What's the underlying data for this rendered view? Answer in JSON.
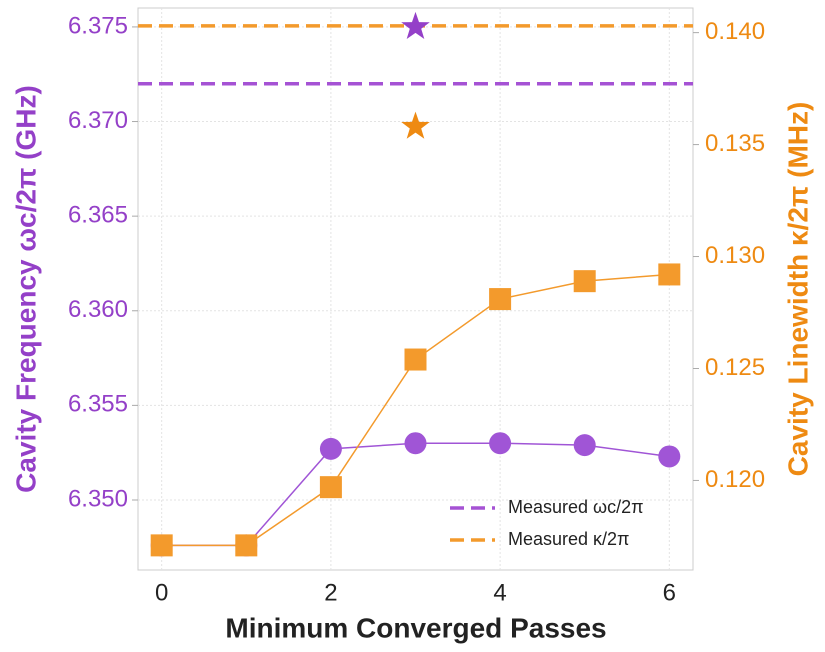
{
  "chart_data": {
    "type": "line",
    "x_label": "Minimum Converged Passes",
    "y_label": "Cavity Frequency ωc/2π (GHz)",
    "y2_label": "Cavity Linewidth κ/2π (MHz)",
    "x": [
      0,
      1,
      2,
      3,
      4,
      5,
      6
    ],
    "xlim": [
      -0.28,
      6.28
    ],
    "xticks": [
      0,
      2,
      4,
      6
    ],
    "ylim": [
      6.3463,
      6.376
    ],
    "yticks": [
      {
        "value": 6.35,
        "label": "6.350"
      },
      6.355,
      {
        "value": 6.36,
        "label": "6.360"
      },
      6.365,
      {
        "value": 6.37,
        "label": "6.370"
      },
      6.375
    ],
    "y2lim": [
      0.116,
      0.1411
    ],
    "y2ticks": [
      {
        "value": 0.12,
        "label": "0.120"
      },
      0.125,
      {
        "value": 0.13,
        "label": "0.130"
      },
      0.135,
      {
        "value": 0.14,
        "label": "0.140"
      }
    ],
    "grid": true,
    "legend": "lower right",
    "y_color": "#9440c8",
    "y2_color": "#ee8a12",
    "series": [
      {
        "color": "#a055d6",
        "marker": "circle",
        "values": [
          6.3476,
          6.3476,
          6.3527,
          6.353,
          6.353,
          6.3529,
          6.3523
        ]
      },
      {
        "color": "#f39a2c",
        "marker": "square",
        "axis": "y2",
        "values": [
          0.1171,
          0.1171,
          0.1197,
          0.1254,
          0.1281,
          0.1289,
          0.1292
        ]
      }
    ],
    "reference_lines": [
      {
        "name": "Measured ωc/2π",
        "value": 6.372,
        "color": "#a552d4"
      },
      {
        "name": "Measured κ/2π",
        "value": 0.1403,
        "color": "#f39a2c",
        "axis": "y2"
      }
    ],
    "stars": [
      {
        "x": 3,
        "value": 6.375,
        "color": "#9440c8"
      },
      {
        "x": 3,
        "value": 0.1358,
        "color": "#ee8a12",
        "axis": "y2"
      }
    ]
  }
}
